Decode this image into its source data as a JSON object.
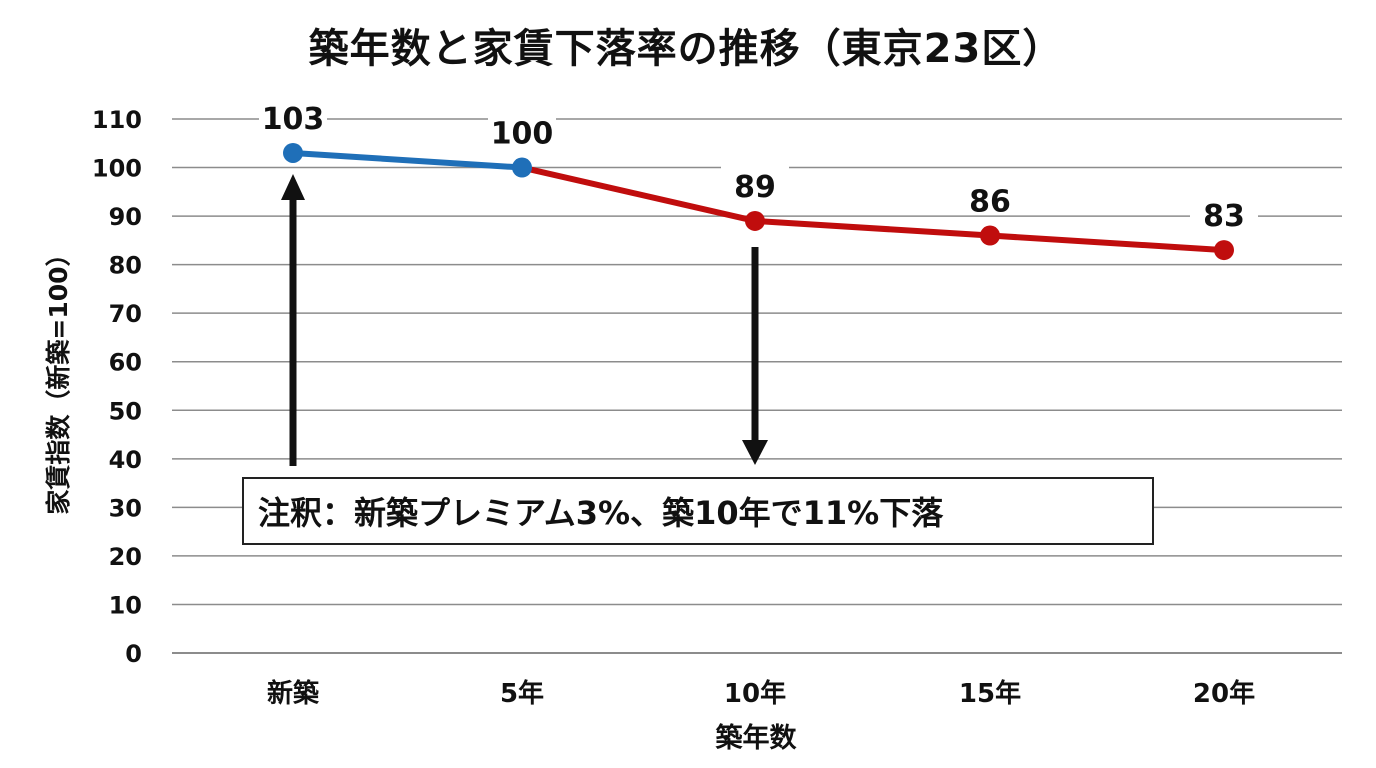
{
  "chart_data": {
    "type": "line",
    "title": "築年数と家賃下落率の推移（東京23区）",
    "xlabel": "築年数",
    "ylabel": "家賃指数（新築=100）",
    "categories": [
      "新築",
      "5年",
      "10年",
      "15年",
      "20年"
    ],
    "series": [
      {
        "name": "家賃指数",
        "values": [
          103,
          100,
          89,
          86,
          83
        ],
        "segment_colors": [
          "#1f6fb8",
          "#c00d0d",
          "#c00d0d",
          "#c00d0d"
        ],
        "data_labels": [
          "103",
          "100",
          "89",
          "86",
          "83"
        ]
      }
    ],
    "ylim": [
      0,
      110
    ],
    "yticks": [
      0,
      10,
      20,
      30,
      40,
      50,
      60,
      70,
      80,
      90,
      100,
      110
    ],
    "grid": true,
    "legend": "none",
    "annotations": [
      {
        "type": "arrow",
        "direction": "up",
        "at": "新築",
        "from_y": 40,
        "to_y": 101
      },
      {
        "type": "arrow",
        "direction": "down",
        "at": "10年",
        "from_y": 84,
        "to_y": 40
      },
      {
        "type": "textbox",
        "text": "注釈：新築プレミアム3%、築10年で11%下落"
      }
    ]
  },
  "colors": {
    "blue_segment": "#1f6fb8",
    "red_segment": "#c00d0d",
    "grid": "#8c8c8c",
    "text": "#111111"
  },
  "note": {
    "text": "注釈：新築プレミアム3%、築10年で11%下落"
  },
  "yticks_text": [
    "110",
    "100",
    "90",
    "80",
    "70",
    "60",
    "50",
    "40",
    "30",
    "20",
    "10",
    "0"
  ]
}
